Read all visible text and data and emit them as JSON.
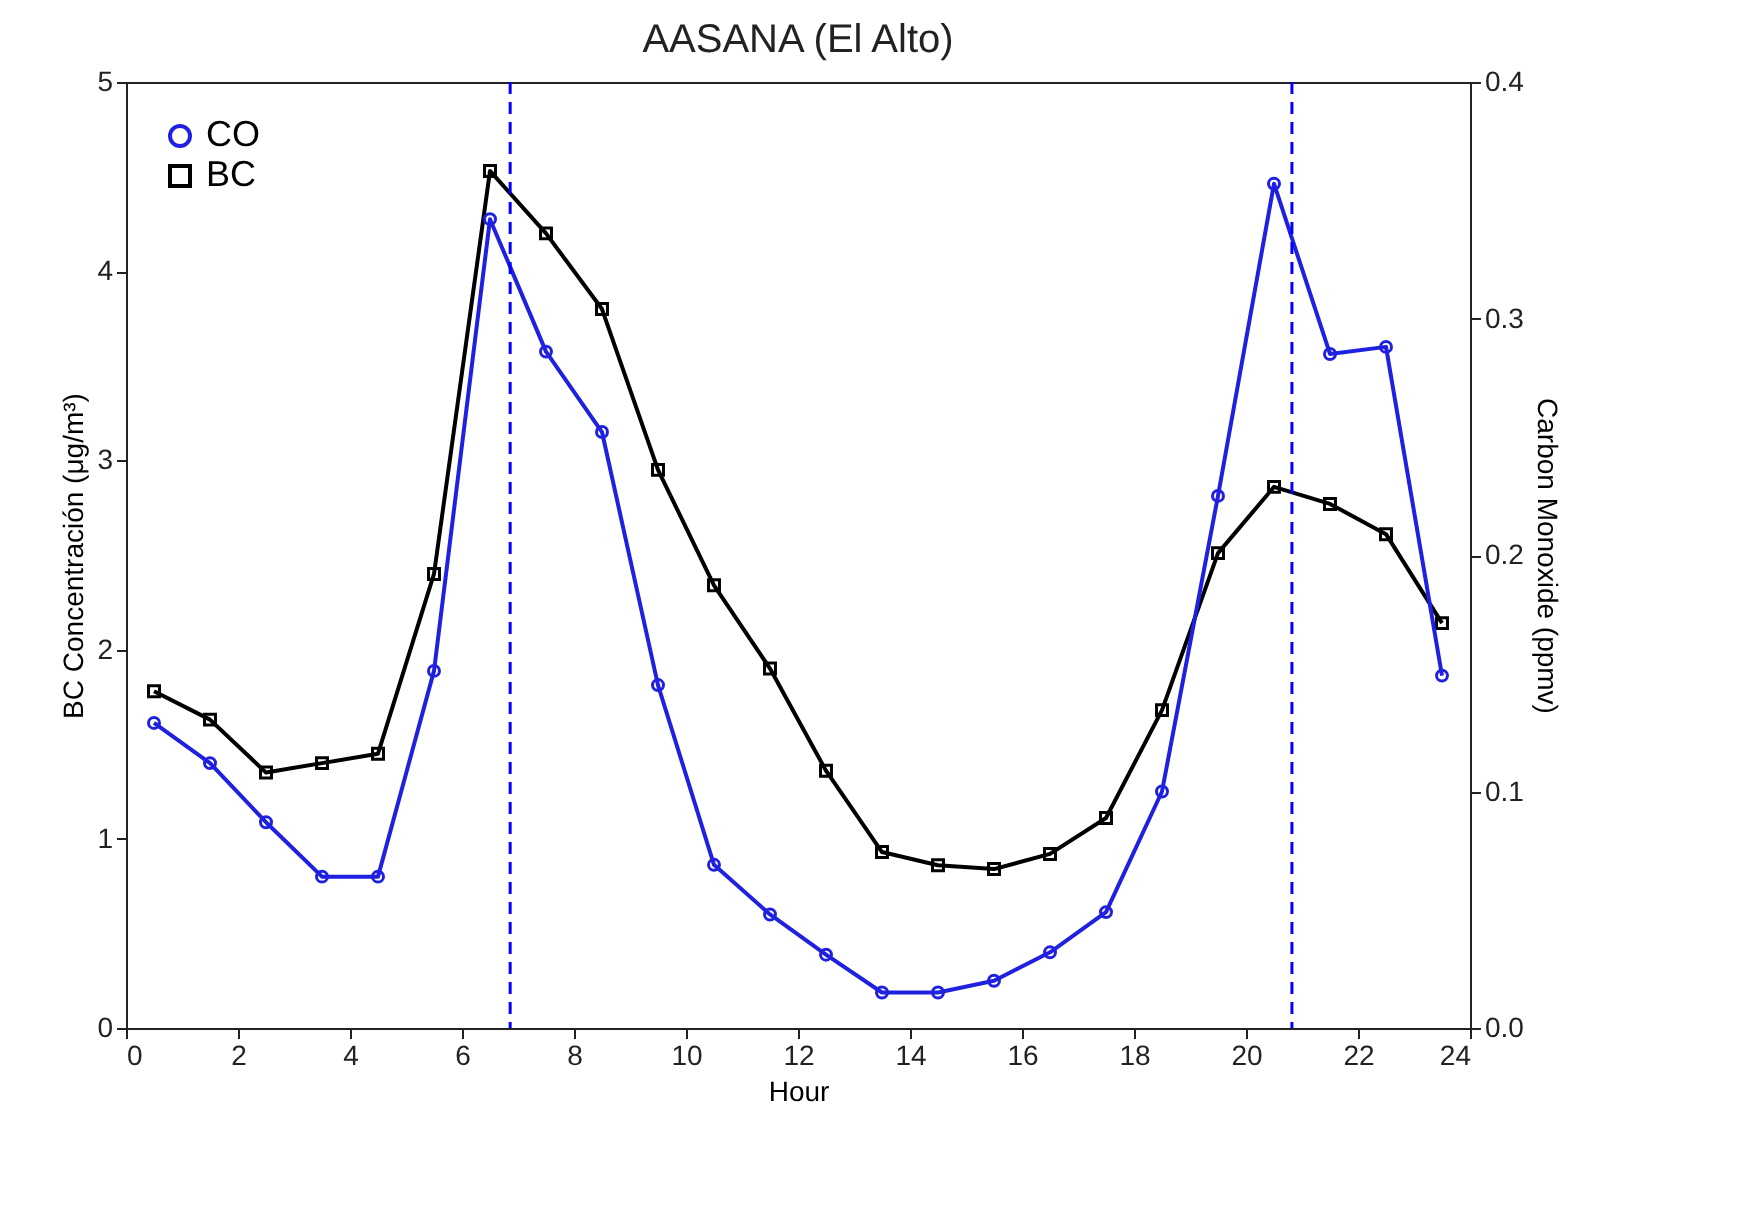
{
  "chart_data": {
    "type": "line",
    "title": "AASANA (El Alto)",
    "xlabel": "Hour",
    "ylabel": "BC Concentración (μg/m³)",
    "y2label": "Carbon Monoxide (ppmv)",
    "x": [
      0.5,
      1.5,
      2.5,
      3.5,
      4.5,
      5.5,
      6.5,
      7.5,
      8.5,
      9.5,
      10.5,
      11.5,
      12.5,
      13.5,
      14.5,
      15.5,
      16.5,
      17.5,
      18.5,
      19.5,
      20.5,
      21.5,
      22.5,
      23.5
    ],
    "series": [
      {
        "name": "CO",
        "color": "#2020e0",
        "axis": "y2",
        "marker": "circle",
        "values": [
          0.129,
          0.112,
          0.087,
          0.064,
          0.064,
          0.151,
          0.342,
          0.286,
          0.252,
          0.145,
          0.069,
          0.048,
          0.031,
          0.015,
          0.015,
          0.02,
          0.032,
          0.049,
          0.1,
          0.225,
          0.357,
          0.285,
          0.288,
          0.149
        ]
      },
      {
        "name": "BC",
        "color": "#000000",
        "marker": "square",
        "values": [
          1.78,
          1.63,
          1.35,
          1.4,
          1.45,
          2.4,
          4.53,
          4.2,
          3.8,
          2.95,
          2.34,
          1.9,
          1.36,
          0.93,
          0.86,
          0.84,
          0.92,
          1.11,
          1.68,
          2.51,
          2.86,
          2.77,
          2.61,
          2.14
        ]
      }
    ],
    "xlim": [
      0,
      24
    ],
    "xticks": [
      0,
      2,
      4,
      6,
      8,
      10,
      12,
      14,
      16,
      18,
      20,
      22,
      24
    ],
    "ylim": [
      0,
      5
    ],
    "yticks": [
      0,
      1,
      2,
      3,
      4,
      5
    ],
    "y2lim": [
      0,
      0.4
    ],
    "y2ticks": [
      {
        "value": 0,
        "label": "0.0"
      },
      {
        "value": 0.1,
        "label": "0.1"
      },
      {
        "value": 0.2,
        "label": "0.2"
      },
      {
        "value": 0.3,
        "label": "0.3"
      },
      {
        "value": 0.4,
        "label": "0.4"
      }
    ],
    "ref_lines": [
      {
        "axis": "x",
        "value": 6.86,
        "color": "#0000ff",
        "line_style": "dashed"
      },
      {
        "axis": "x",
        "value": 20.82,
        "color": "#0000ff",
        "line_style": "dashed"
      }
    ],
    "grid": false,
    "legend": "top left",
    "line_style": "solid"
  }
}
